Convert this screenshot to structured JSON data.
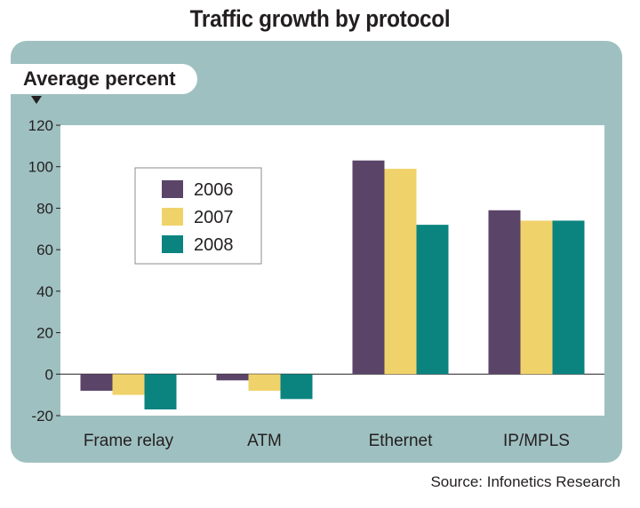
{
  "chart_data": {
    "type": "bar",
    "title": "Traffic growth by protocol",
    "ylabel": "Average percent",
    "xlabel": "",
    "categories": [
      "Frame relay",
      "ATM",
      "Ethernet",
      "IP/MPLS"
    ],
    "series": [
      {
        "name": "2006",
        "color": "#5a4468",
        "values": [
          -8,
          -3,
          103,
          79
        ]
      },
      {
        "name": "2007",
        "color": "#f0d26a",
        "values": [
          -10,
          -8,
          99,
          74
        ]
      },
      {
        "name": "2008",
        "color": "#0b8480",
        "values": [
          -17,
          -12,
          72,
          74
        ]
      }
    ],
    "ylim": [
      -20,
      120
    ],
    "yticks": [
      -20,
      0,
      20,
      40,
      60,
      80,
      100,
      120
    ],
    "legend_position": "top-left",
    "source": "Source: Infonetics Research"
  }
}
